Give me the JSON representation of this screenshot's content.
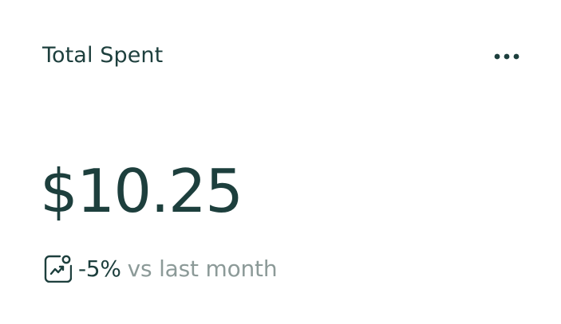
{
  "card": {
    "title": "Total Spent",
    "amount": "$10.25",
    "change": "-5%",
    "comparison": "vs last month",
    "icons": {
      "menu": "more-horizontal-icon",
      "trend": "trend-chart-icon"
    }
  },
  "colors": {
    "primary_text": "#1d3f3d",
    "muted_text": "#8c9a98",
    "background": "#ffffff"
  }
}
